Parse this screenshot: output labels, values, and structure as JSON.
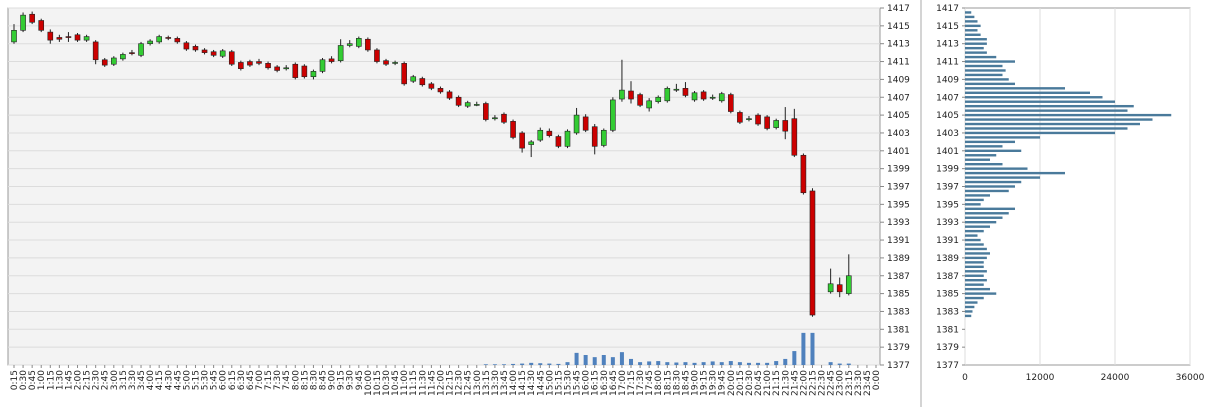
{
  "chart_data": {
    "type": "candlestick",
    "categories": [
      "0:15",
      "0:30",
      "0:45",
      "1:00",
      "1:15",
      "1:30",
      "1:45",
      "2:00",
      "2:15",
      "2:30",
      "2:45",
      "3:00",
      "3:15",
      "3:30",
      "3:45",
      "4:00",
      "4:15",
      "4:30",
      "4:45",
      "5:00",
      "5:15",
      "5:30",
      "5:45",
      "6:00",
      "6:15",
      "6:30",
      "6:45",
      "7:00",
      "7:15",
      "7:30",
      "7:45",
      "8:00",
      "8:15",
      "8:30",
      "8:45",
      "9:00",
      "9:15",
      "9:30",
      "9:45",
      "10:00",
      "10:15",
      "10:30",
      "10:45",
      "11:00",
      "11:15",
      "11:30",
      "11:45",
      "12:00",
      "12:15",
      "12:30",
      "12:45",
      "13:00",
      "13:15",
      "13:30",
      "13:45",
      "14:00",
      "14:15",
      "14:30",
      "14:45",
      "15:00",
      "15:15",
      "15:30",
      "15:45",
      "16:00",
      "16:15",
      "16:30",
      "16:45",
      "17:00",
      "17:15",
      "17:30",
      "17:45",
      "18:00",
      "18:15",
      "18:30",
      "18:45",
      "19:00",
      "19:15",
      "19:30",
      "19:45",
      "20:00",
      "20:15",
      "20:30",
      "20:45",
      "21:00",
      "21:15",
      "21:30",
      "21:45",
      "22:00",
      "22:15",
      "22:30",
      "22:45",
      "23:00",
      "23:15",
      "23:30",
      "23:45",
      "0:00"
    ],
    "candles": [
      [
        1413.2,
        1415.2,
        1413.0,
        1414.5
      ],
      [
        1414.5,
        1416.5,
        1414.3,
        1416.2
      ],
      [
        1416.3,
        1416.6,
        1415.2,
        1415.4
      ],
      [
        1415.6,
        1415.8,
        1414.3,
        1414.5
      ],
      [
        1414.3,
        1414.6,
        1413.0,
        1413.4
      ],
      [
        1413.7,
        1414.0,
        1413.2,
        1413.5
      ],
      [
        1413.8,
        1414.3,
        1413.2,
        1413.7
      ],
      [
        1414.0,
        1414.2,
        1413.2,
        1413.4
      ],
      [
        1413.4,
        1414.0,
        1413.2,
        1413.8
      ],
      [
        1413.2,
        1413.4,
        1410.7,
        1411.2
      ],
      [
        1411.2,
        1411.4,
        1410.4,
        1410.6
      ],
      [
        1410.7,
        1411.6,
        1410.5,
        1411.4
      ],
      [
        1411.3,
        1412.0,
        1411.1,
        1411.8
      ],
      [
        1412.0,
        1412.3,
        1411.7,
        1411.9
      ],
      [
        1411.7,
        1413.2,
        1411.5,
        1413.0
      ],
      [
        1413.0,
        1413.5,
        1412.8,
        1413.3
      ],
      [
        1413.2,
        1414.0,
        1413.0,
        1413.8
      ],
      [
        1413.7,
        1413.9,
        1413.4,
        1413.6
      ],
      [
        1413.6,
        1413.8,
        1413.0,
        1413.2
      ],
      [
        1413.1,
        1413.3,
        1412.2,
        1412.4
      ],
      [
        1412.7,
        1412.9,
        1412.1,
        1412.3
      ],
      [
        1412.3,
        1412.5,
        1411.8,
        1412.0
      ],
      [
        1412.1,
        1412.3,
        1411.5,
        1411.7
      ],
      [
        1411.6,
        1412.4,
        1411.4,
        1412.2
      ],
      [
        1412.1,
        1412.3,
        1410.5,
        1410.7
      ],
      [
        1410.9,
        1411.1,
        1410.0,
        1410.2
      ],
      [
        1411.0,
        1411.2,
        1410.4,
        1410.6
      ],
      [
        1411.0,
        1411.3,
        1410.6,
        1410.8
      ],
      [
        1410.8,
        1411.0,
        1410.1,
        1410.3
      ],
      [
        1410.4,
        1410.6,
        1409.8,
        1410.0
      ],
      [
        1410.3,
        1410.6,
        1410.0,
        1410.3
      ],
      [
        1410.7,
        1410.9,
        1409.0,
        1409.2
      ],
      [
        1410.5,
        1410.7,
        1409.1,
        1409.3
      ],
      [
        1409.3,
        1410.1,
        1409.0,
        1409.9
      ],
      [
        1409.9,
        1411.4,
        1409.7,
        1411.2
      ],
      [
        1411.3,
        1411.6,
        1410.8,
        1411.0
      ],
      [
        1411.1,
        1413.5,
        1410.9,
        1412.8
      ],
      [
        1412.8,
        1413.4,
        1412.6,
        1413.0
      ],
      [
        1412.7,
        1413.8,
        1412.5,
        1413.6
      ],
      [
        1413.5,
        1413.7,
        1412.1,
        1412.3
      ],
      [
        1412.3,
        1412.5,
        1410.8,
        1411.0
      ],
      [
        1411.1,
        1411.3,
        1410.5,
        1410.7
      ],
      [
        1410.9,
        1411.1,
        1410.6,
        1410.9
      ],
      [
        1410.8,
        1411.0,
        1408.3,
        1408.5
      ],
      [
        1408.8,
        1409.5,
        1408.6,
        1409.3
      ],
      [
        1409.1,
        1409.3,
        1408.2,
        1408.4
      ],
      [
        1408.5,
        1408.7,
        1407.8,
        1408.0
      ],
      [
        1408.0,
        1408.2,
        1407.4,
        1407.6
      ],
      [
        1407.6,
        1407.8,
        1406.7,
        1406.9
      ],
      [
        1407.0,
        1407.2,
        1405.9,
        1406.1
      ],
      [
        1406.0,
        1406.6,
        1405.8,
        1406.4
      ],
      [
        1406.2,
        1406.5,
        1406.0,
        1406.2
      ],
      [
        1406.3,
        1406.5,
        1404.3,
        1404.5
      ],
      [
        1404.7,
        1405.0,
        1404.4,
        1404.7
      ],
      [
        1405.1,
        1405.3,
        1404.0,
        1404.2
      ],
      [
        1404.3,
        1404.5,
        1402.3,
        1402.5
      ],
      [
        1403.0,
        1403.2,
        1400.8,
        1401.3
      ],
      [
        1401.7,
        1402.2,
        1400.3,
        1402.0
      ],
      [
        1402.2,
        1403.6,
        1402.0,
        1403.3
      ],
      [
        1403.2,
        1403.5,
        1402.5,
        1402.7
      ],
      [
        1402.6,
        1402.8,
        1401.3,
        1401.5
      ],
      [
        1401.5,
        1403.4,
        1401.3,
        1403.2
      ],
      [
        1403.0,
        1405.8,
        1402.8,
        1405.0
      ],
      [
        1404.8,
        1405.1,
        1403.1,
        1403.3
      ],
      [
        1403.7,
        1404.0,
        1400.6,
        1401.5
      ],
      [
        1401.6,
        1403.5,
        1401.4,
        1403.3
      ],
      [
        1403.3,
        1407.0,
        1403.1,
        1406.7
      ],
      [
        1406.8,
        1411.2,
        1406.5,
        1407.8
      ],
      [
        1407.7,
        1408.8,
        1406.3,
        1406.8
      ],
      [
        1407.3,
        1407.5,
        1405.9,
        1406.1
      ],
      [
        1405.8,
        1406.9,
        1405.4,
        1406.6
      ],
      [
        1406.5,
        1407.2,
        1406.3,
        1407.0
      ],
      [
        1406.6,
        1408.2,
        1406.4,
        1408.0
      ],
      [
        1407.9,
        1408.5,
        1407.6,
        1407.9
      ],
      [
        1408.0,
        1408.7,
        1407.0,
        1407.2
      ],
      [
        1406.7,
        1407.7,
        1406.5,
        1407.5
      ],
      [
        1407.6,
        1407.8,
        1406.6,
        1406.8
      ],
      [
        1407.0,
        1407.3,
        1406.7,
        1407.0
      ],
      [
        1406.6,
        1407.6,
        1406.4,
        1407.4
      ],
      [
        1407.3,
        1407.5,
        1405.2,
        1405.4
      ],
      [
        1405.3,
        1405.5,
        1404.0,
        1404.2
      ],
      [
        1404.6,
        1404.9,
        1404.3,
        1404.6
      ],
      [
        1405.0,
        1405.2,
        1403.8,
        1404.0
      ],
      [
        1404.8,
        1405.0,
        1403.3,
        1403.5
      ],
      [
        1403.6,
        1404.6,
        1403.4,
        1404.4
      ],
      [
        1404.4,
        1405.9,
        1402.3,
        1403.2
      ],
      [
        1404.6,
        1405.7,
        1400.3,
        1400.5
      ],
      [
        1400.5,
        1400.7,
        1396.1,
        1396.3
      ],
      [
        1396.5,
        1396.8,
        1382.4,
        1382.6
      ],
      null,
      [
        1385.2,
        1387.8,
        1385.0,
        1386.1
      ],
      [
        1386.0,
        1386.8,
        1384.6,
        1385.2
      ],
      [
        1385.0,
        1389.4,
        1384.8,
        1387.0
      ],
      null,
      null,
      null
    ],
    "volume": [
      0,
      0,
      0,
      0,
      0,
      0,
      0,
      0,
      0,
      0,
      0,
      0,
      0,
      0,
      0,
      0,
      0,
      0,
      0,
      0,
      0,
      0,
      0,
      0,
      0,
      0,
      0,
      0,
      0,
      0,
      0,
      0,
      0,
      0,
      0,
      0,
      0,
      0,
      0,
      0,
      0,
      0,
      0,
      0,
      0,
      0,
      0,
      0,
      0,
      0,
      0,
      0,
      2,
      2,
      2,
      3,
      4,
      6,
      5,
      4,
      3,
      8,
      34,
      28,
      22,
      28,
      22,
      36,
      17,
      8,
      10,
      11,
      8,
      7,
      8,
      6,
      8,
      10,
      8,
      11,
      8,
      6,
      6,
      6,
      11,
      17,
      39,
      90,
      90,
      0,
      8,
      4,
      4,
      0,
      0,
      0
    ],
    "volume_lim": [
      0,
      1000
    ],
    "up_color": "#33cc33",
    "down_color": "#cc0000",
    "volume_color": "#4f81bd",
    "ylim": [
      1377,
      1417
    ],
    "yticks": [
      1377,
      1379,
      1381,
      1383,
      1385,
      1387,
      1389,
      1391,
      1393,
      1395,
      1397,
      1399,
      1401,
      1403,
      1405,
      1407,
      1409,
      1411,
      1413,
      1415,
      1417
    ],
    "grid": true,
    "profile": {
      "type": "hbar",
      "color": "#4a7a9b",
      "prices": [
        1382.5,
        1383,
        1383.5,
        1384,
        1384.5,
        1385,
        1385.5,
        1386,
        1386.5,
        1387,
        1387.5,
        1388,
        1388.5,
        1389,
        1389.5,
        1390,
        1390.5,
        1391,
        1391.5,
        1392,
        1392.5,
        1393,
        1393.5,
        1394,
        1394.5,
        1395,
        1395.5,
        1396,
        1396.5,
        1397,
        1397.5,
        1398,
        1398.5,
        1399,
        1399.5,
        1400,
        1400.5,
        1401,
        1401.5,
        1402,
        1402.5,
        1403,
        1403.5,
        1404,
        1404.5,
        1405,
        1405.5,
        1406,
        1406.5,
        1407,
        1407.5,
        1408,
        1408.5,
        1409,
        1409.5,
        1410,
        1410.5,
        1411,
        1411.5,
        1412,
        1412.5,
        1413,
        1413.5,
        1414,
        1414.5,
        1415,
        1415.5,
        1416,
        1416.5
      ],
      "values": [
        1000,
        1200,
        1500,
        2000,
        3000,
        5000,
        4000,
        3000,
        3500,
        3000,
        3500,
        3000,
        3000,
        3500,
        4000,
        3500,
        3000,
        2500,
        2000,
        3000,
        4000,
        5000,
        6000,
        7000,
        8000,
        2500,
        3000,
        4000,
        7000,
        8000,
        9000,
        12000,
        16000,
        10000,
        6000,
        4000,
        5000,
        9000,
        6000,
        8000,
        12000,
        24000,
        26000,
        28000,
        30000,
        33000,
        26000,
        27000,
        24000,
        22000,
        20000,
        16000,
        8000,
        7000,
        6000,
        6500,
        6000,
        8000,
        5000,
        3500,
        3000,
        3500,
        3500,
        2500,
        2000,
        2500,
        2000,
        1500,
        1000
      ],
      "xlim": [
        0,
        36000
      ],
      "xticks": [
        0,
        12000,
        24000,
        36000
      ],
      "grid": true
    }
  }
}
